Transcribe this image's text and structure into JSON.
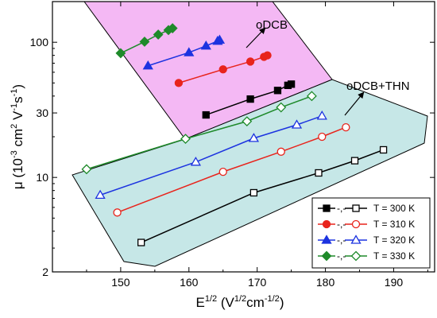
{
  "chart_data": {
    "type": "scatter",
    "xlabel_main": "E",
    "xlabel_sup": "1/2",
    "xlabel_units_open": " (V",
    "xlabel_units_sup1": "1/2",
    "xlabel_units_mid": "cm",
    "xlabel_units_sup2": "-1/2",
    "xlabel_units_close": ")",
    "ylabel_parts": {
      "mu": "μ",
      "open": " (10",
      "sup1": "-3",
      "cm": " cm",
      "sup2": "2",
      "v": " V",
      "sup3": "-1",
      "s": "s",
      "sup4": "-1",
      "close": ")"
    },
    "x_ticks": [
      "150",
      "160",
      "170",
      "180",
      "190"
    ],
    "x_tick_values": [
      150,
      160,
      170,
      180,
      190
    ],
    "y_ticks": [
      "2",
      "10",
      "30",
      "100"
    ],
    "y_tick_values": [
      2,
      10,
      30,
      100
    ],
    "xlim": [
      140,
      196
    ],
    "ylim": [
      2,
      200
    ],
    "y_scale": "log",
    "annotations": {
      "odcb": "oDCB",
      "odcb_thn": "oDCB+THN"
    },
    "legend_dash": "-,-",
    "legend_position": "bottom-right",
    "colors": {
      "s300": "#000000",
      "s310": "#e8241c",
      "s320": "#1c33e0",
      "s330": "#1e8a2a",
      "region_odcb": "#f4b8f4",
      "region_thn": "#c6e7e7"
    },
    "series": [
      {
        "name": "T = 300 K",
        "key": "s300",
        "odcb": {
          "x": [
            162.5,
            169.0,
            173.0,
            174.5,
            175.0
          ],
          "y": [
            29,
            38,
            44,
            48,
            49
          ]
        },
        "odcb_thn": {
          "x": [
            153.0,
            169.5,
            179.0,
            184.3,
            188.5
          ],
          "y": [
            3.3,
            7.7,
            10.8,
            13.3,
            16.0
          ]
        }
      },
      {
        "name": "T = 310 K",
        "key": "s310",
        "odcb": {
          "x": [
            158.5,
            165.0,
            169.0,
            171.0,
            171.5
          ],
          "y": [
            50,
            63,
            72,
            78,
            80
          ]
        },
        "odcb_thn": {
          "x": [
            149.5,
            165.0,
            173.5,
            179.5,
            183.0
          ],
          "y": [
            5.5,
            11.0,
            15.5,
            20.0,
            23.5
          ]
        }
      },
      {
        "name": "T = 320 K",
        "key": "s320",
        "odcb": {
          "x": [
            154.0,
            160.0,
            162.5,
            164.2,
            164.5
          ],
          "y": [
            67,
            84,
            94,
            102,
            104
          ]
        },
        "odcb_thn": {
          "x": [
            147.0,
            161.0,
            169.5,
            175.8,
            179.5
          ],
          "y": [
            7.4,
            13.0,
            19.5,
            24.5,
            28.5
          ]
        }
      },
      {
        "name": "T = 330 K",
        "key": "s330",
        "odcb": {
          "x": [
            150.0,
            153.5,
            155.5,
            157.0,
            157.6
          ],
          "y": [
            83,
            101,
            114,
            123,
            127
          ]
        },
        "odcb_thn": {
          "x": [
            145.0,
            159.5,
            168.5,
            173.5,
            178.0
          ],
          "y": [
            11.5,
            19.3,
            26.0,
            33.0,
            40.0
          ]
        }
      }
    ]
  }
}
